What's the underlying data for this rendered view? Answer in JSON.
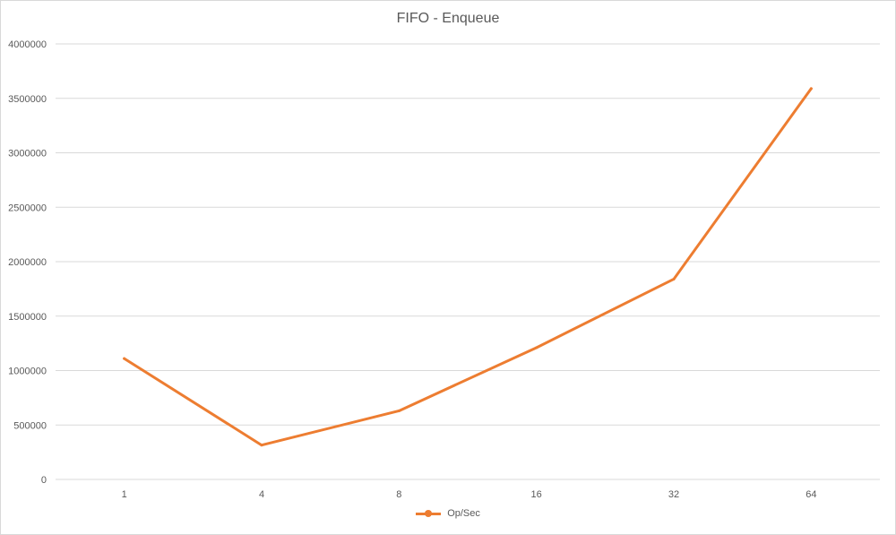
{
  "chart_data": {
    "type": "line",
    "title": "FIFO - Enqueue",
    "categories": [
      "1",
      "4",
      "8",
      "16",
      "32",
      "64"
    ],
    "series": [
      {
        "name": "Op/Sec",
        "values": [
          1110000,
          315000,
          630000,
          1210000,
          1840000,
          3590000
        ],
        "color": "#ed7d31"
      }
    ],
    "ylim": [
      0,
      4000000
    ],
    "yticks": [
      0,
      500000,
      1000000,
      1500000,
      2000000,
      2500000,
      3000000,
      3500000,
      4000000
    ],
    "grid": true,
    "legend_position": "bottom"
  }
}
